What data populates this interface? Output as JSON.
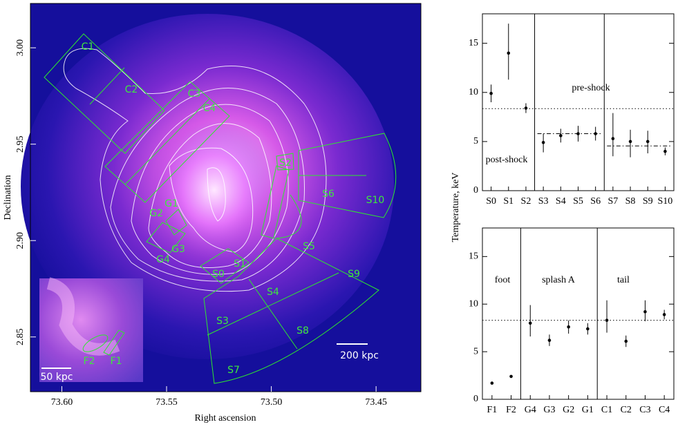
{
  "chart_data": [
    {
      "type": "image",
      "x_label": "Right ascension",
      "y_label": "Declination",
      "xlim": [
        73.615,
        73.4286
      ],
      "ylim": [
        2.8216,
        3.023
      ],
      "xticks": [
        {
          "value": 73.6,
          "label": "73.60"
        },
        73.55,
        {
          "value": 73.5,
          "label": "73.50"
        },
        73.45
      ],
      "yticks": [
        2.85,
        {
          "value": 2.9,
          "label": "2.90"
        },
        2.95,
        {
          "value": 3,
          "label": "3.00"
        }
      ],
      "region_labels": [
        "C1",
        "C2",
        "C3",
        "C4",
        "S2",
        "S6",
        "S10",
        "G1",
        "G2",
        "G3",
        "G4",
        "S0",
        "S1",
        "S5",
        "S9",
        "S4",
        "S3",
        "S8",
        "S7",
        "F1",
        "F2"
      ],
      "scale_bar": "200 kpc",
      "inset_scale_bar": "50 kpc"
    },
    {
      "type": "errorbar",
      "y_label": "Temperature, keV",
      "categories": [
        "S0",
        "S1",
        "S2",
        "S3",
        "S4",
        "S5",
        "S6",
        "S7",
        "S8",
        "S9",
        "S10"
      ],
      "values": [
        9.9,
        14.0,
        8.4,
        4.9,
        5.6,
        5.8,
        5.8,
        5.3,
        5.0,
        5.0,
        4.0
      ],
      "error_low": [
        0.9,
        2.7,
        0.5,
        1.0,
        0.7,
        0.8,
        0.7,
        1.8,
        1.6,
        1.2,
        0.4
      ],
      "error_high": [
        0.9,
        3.0,
        0.5,
        0.9,
        0.7,
        0.8,
        0.7,
        2.6,
        1.2,
        1.1,
        0.4
      ],
      "color": "#000000",
      "ylim": [
        0,
        18
      ],
      "yticks": [
        0,
        5,
        10,
        15
      ],
      "reference_lines": [
        {
          "value": 8.35,
          "style": "dotted"
        },
        {
          "value": 5.8,
          "style": "dashdot",
          "from": "S3",
          "to": "S6"
        },
        {
          "value": 4.55,
          "style": "dashdot",
          "from": "S7",
          "to": "S10"
        }
      ],
      "annotations": [
        "pre-shock",
        "post-shock"
      ]
    },
    {
      "type": "errorbar",
      "categories": [
        "F1",
        "F2",
        "G4",
        "G3",
        "G2",
        "G1",
        "C1",
        "C2",
        "C3",
        "C4"
      ],
      "values": [
        1.7,
        2.4,
        8.0,
        6.2,
        7.6,
        7.4,
        8.3,
        6.1,
        9.2,
        8.9
      ],
      "error_low": [
        0.1,
        0.1,
        1.4,
        0.6,
        0.7,
        0.6,
        1.3,
        0.6,
        1.0,
        0.5
      ],
      "error_high": [
        0.1,
        0.1,
        1.9,
        0.6,
        0.7,
        0.6,
        2.1,
        0.6,
        1.2,
        0.5
      ],
      "color": "#000000",
      "ylim": [
        0,
        18
      ],
      "yticks": [
        0,
        5,
        10,
        15
      ],
      "reference_lines": [
        {
          "value": 8.3,
          "style": "dotted"
        }
      ],
      "annotations": [
        "foot",
        "splash A",
        "tail"
      ]
    }
  ]
}
